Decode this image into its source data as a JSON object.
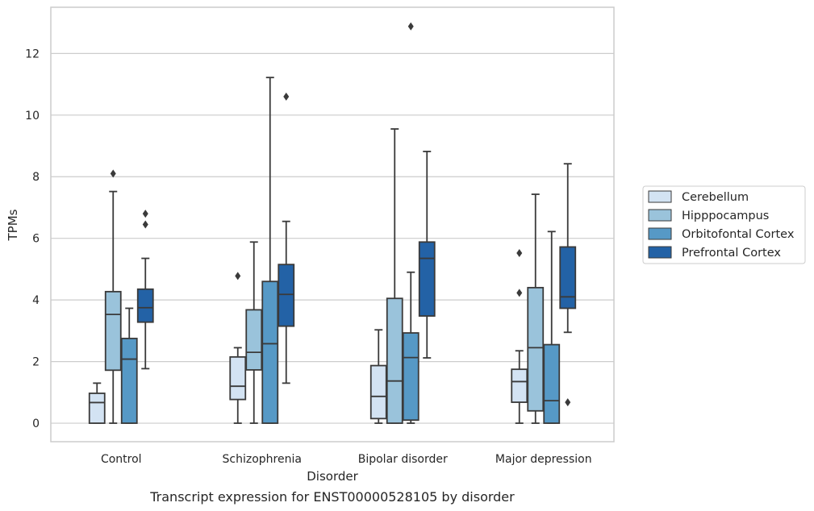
{
  "chart_data": {
    "type": "box",
    "caption": "Transcript expression for ENST00000528105 by disorder",
    "xlabel": "Disorder",
    "ylabel": "TPMs",
    "ylim": [
      -0.6,
      13.5
    ],
    "yticks": [
      0,
      2,
      4,
      6,
      8,
      10,
      12
    ],
    "grid": "horizontal",
    "legend_position": "right",
    "categories": [
      "Control",
      "Schizophrenia",
      "Bipolar disorder",
      "Major depression"
    ],
    "series": [
      {
        "name": "Cerebellum",
        "color": "#d3e3f3",
        "boxes": [
          {
            "whisker_low": 0,
            "q1": 0,
            "median": 0.67,
            "q3": 0.97,
            "whisker_high": 1.3,
            "outliers": []
          },
          {
            "whisker_low": 0,
            "q1": 0.77,
            "median": 1.2,
            "q3": 2.15,
            "whisker_high": 2.45,
            "outliers": [
              4.78
            ]
          },
          {
            "whisker_low": 0,
            "q1": 0.15,
            "median": 0.87,
            "q3": 1.87,
            "whisker_high": 3.03,
            "outliers": []
          },
          {
            "whisker_low": 0,
            "q1": 0.68,
            "median": 1.35,
            "q3": 1.75,
            "whisker_high": 2.35,
            "outliers": [
              4.23,
              5.52
            ]
          }
        ]
      },
      {
        "name": "Hipppocampus",
        "color": "#9ac3db",
        "boxes": [
          {
            "whisker_low": 0,
            "q1": 1.72,
            "median": 3.53,
            "q3": 4.27,
            "whisker_high": 7.52,
            "outliers": [
              8.1
            ]
          },
          {
            "whisker_low": 0,
            "q1": 1.73,
            "median": 2.3,
            "q3": 3.68,
            "whisker_high": 5.88,
            "outliers": []
          },
          {
            "whisker_low": 0,
            "q1": 0,
            "median": 1.37,
            "q3": 4.05,
            "whisker_high": 9.55,
            "outliers": []
          },
          {
            "whisker_low": 0,
            "q1": 0.4,
            "median": 2.45,
            "q3": 4.4,
            "whisker_high": 7.43,
            "outliers": []
          }
        ]
      },
      {
        "name": "Orbitofontal Cortex",
        "color": "#5699c6",
        "boxes": [
          {
            "whisker_low": 0,
            "q1": 0,
            "median": 2.08,
            "q3": 2.75,
            "whisker_high": 3.73,
            "outliers": []
          },
          {
            "whisker_low": 0,
            "q1": 0,
            "median": 2.58,
            "q3": 4.6,
            "whisker_high": 11.22,
            "outliers": []
          },
          {
            "whisker_low": 0,
            "q1": 0.1,
            "median": 2.13,
            "q3": 2.93,
            "whisker_high": 4.9,
            "outliers": [
              12.88
            ]
          },
          {
            "whisker_low": 0,
            "q1": 0,
            "median": 0.73,
            "q3": 2.55,
            "whisker_high": 6.22,
            "outliers": []
          }
        ]
      },
      {
        "name": "Prefrontal Cortex",
        "color": "#2362a6",
        "boxes": [
          {
            "whisker_low": 1.77,
            "q1": 3.28,
            "median": 3.75,
            "q3": 4.35,
            "whisker_high": 5.35,
            "outliers": [
              6.45,
              6.8
            ]
          },
          {
            "whisker_low": 1.3,
            "q1": 3.15,
            "median": 4.18,
            "q3": 5.15,
            "whisker_high": 6.55,
            "outliers": [
              10.6
            ]
          },
          {
            "whisker_low": 2.12,
            "q1": 3.48,
            "median": 5.35,
            "q3": 5.88,
            "whisker_high": 8.82,
            "outliers": []
          },
          {
            "whisker_low": 2.95,
            "q1": 3.73,
            "median": 4.1,
            "q3": 5.72,
            "whisker_high": 8.42,
            "outliers": [
              0.68
            ]
          }
        ]
      }
    ]
  }
}
